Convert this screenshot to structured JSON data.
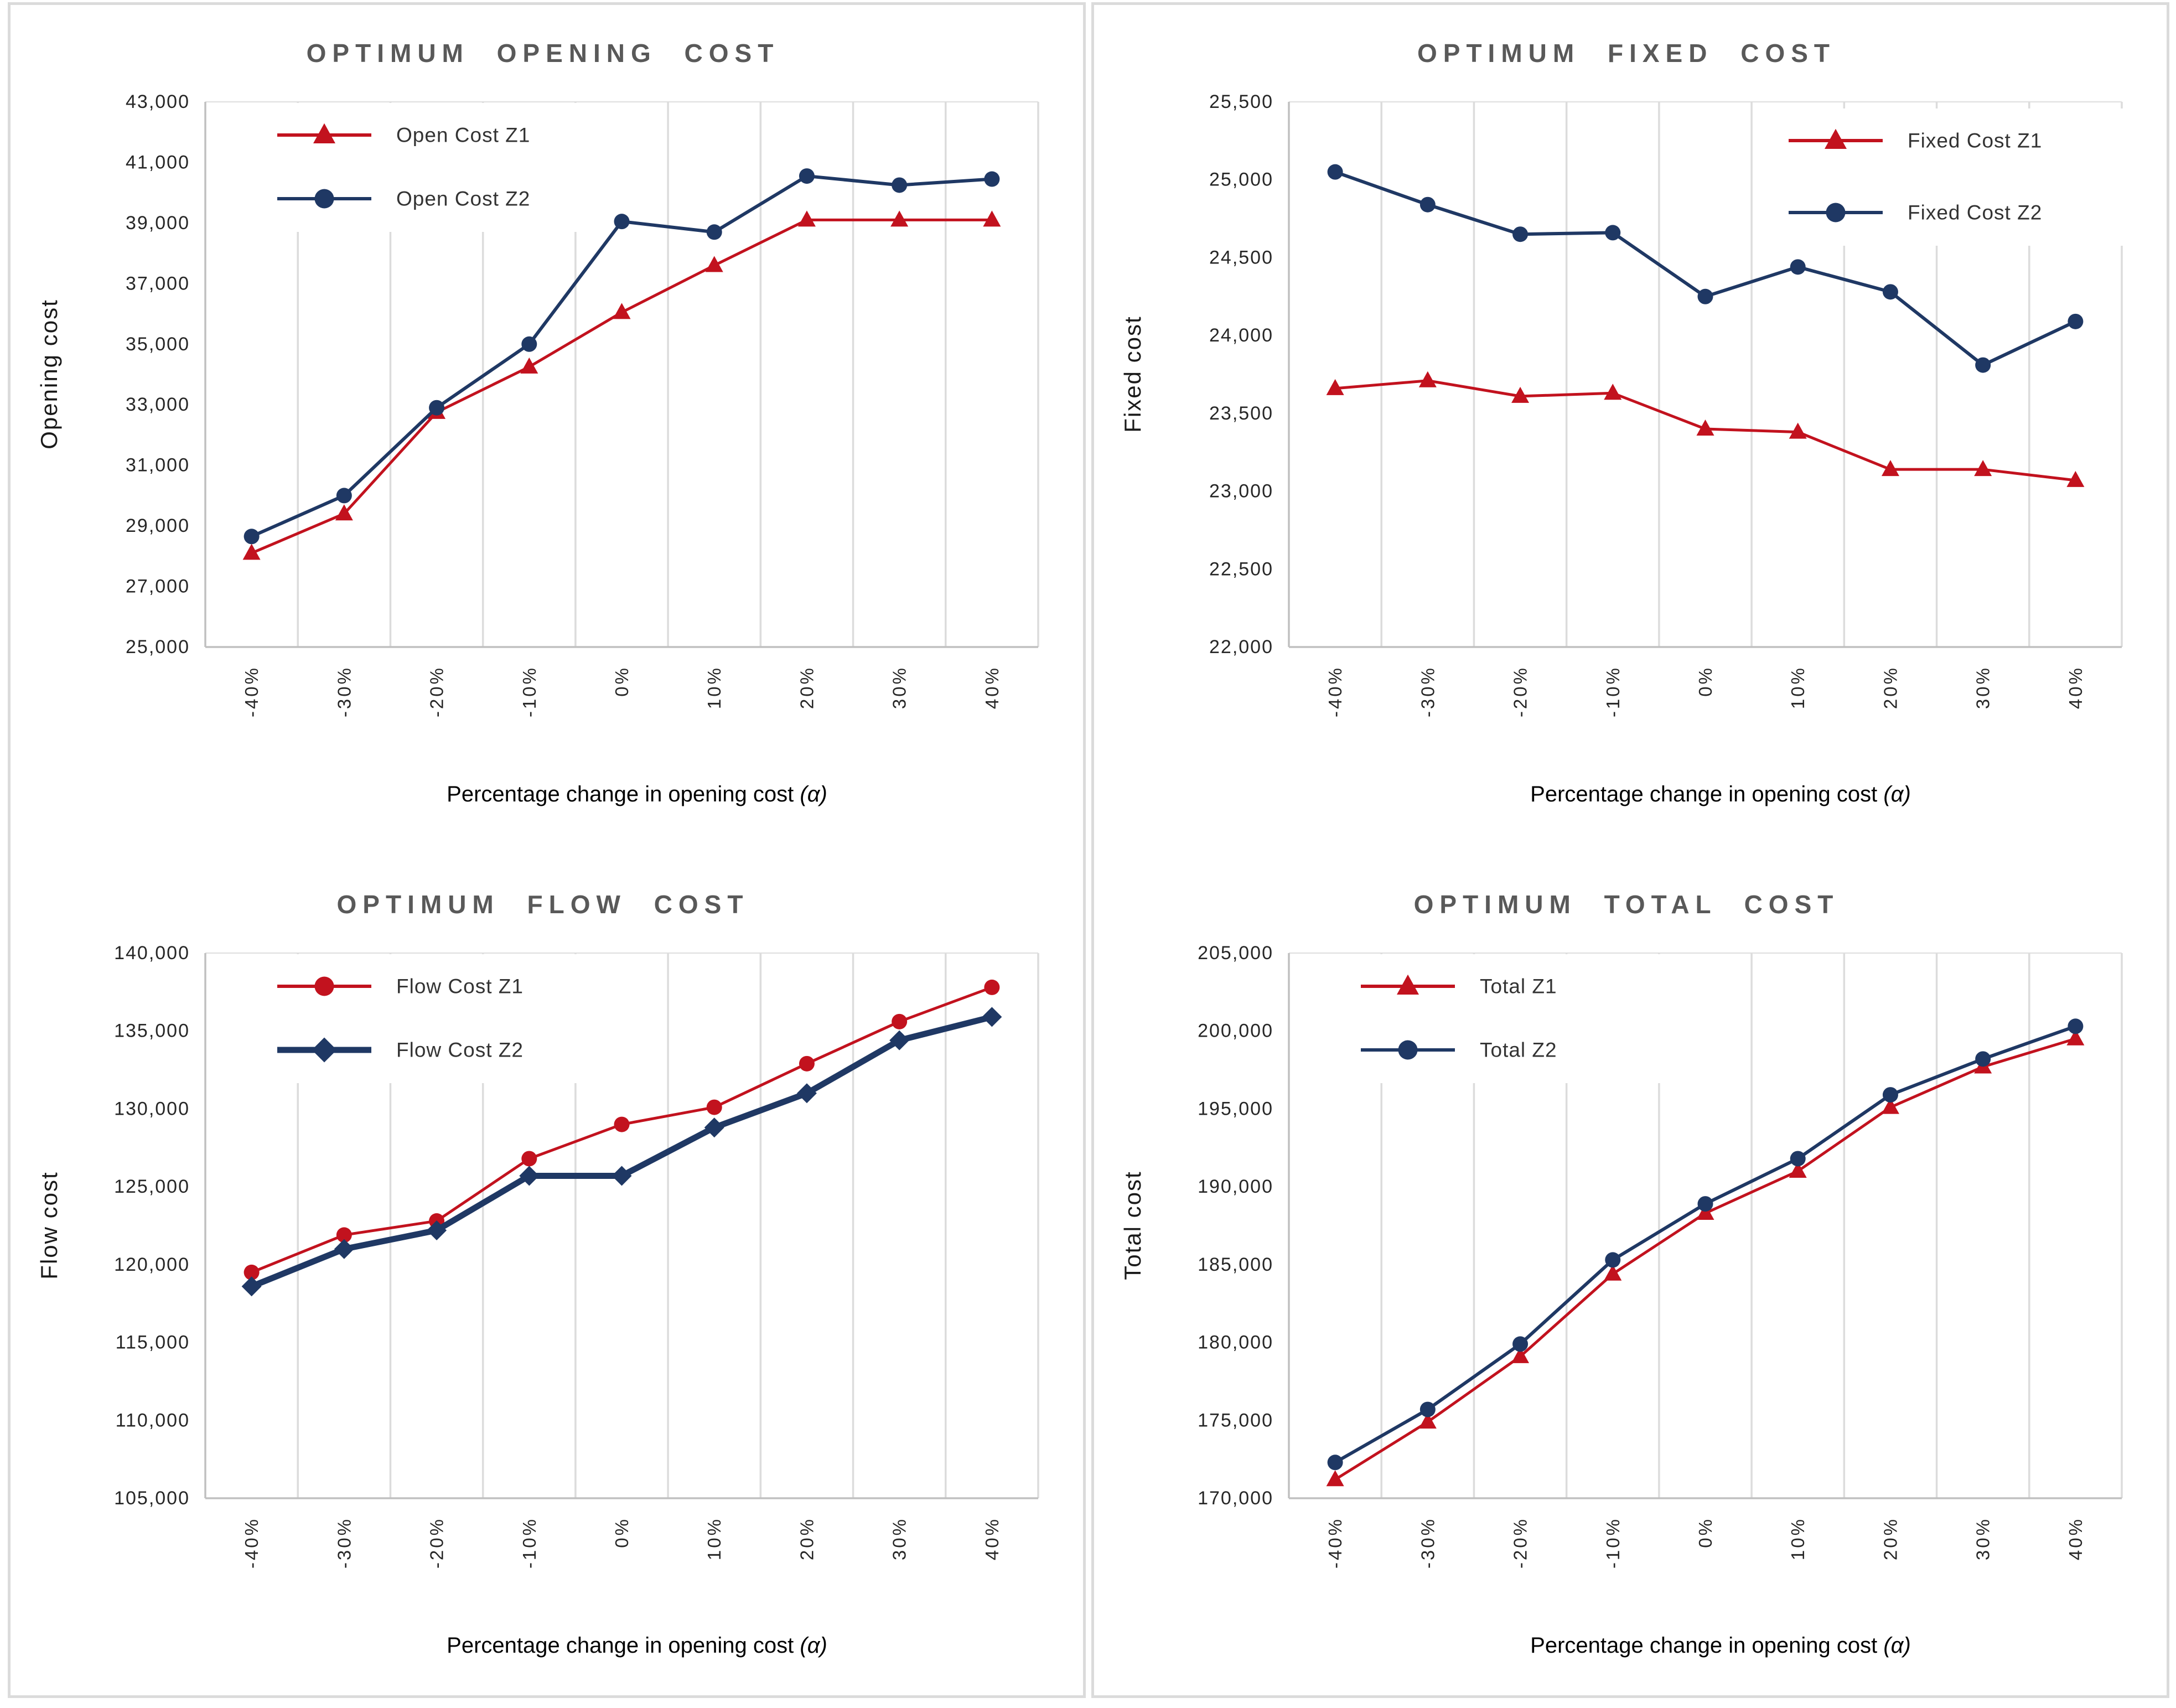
{
  "page": {
    "background": "#FFFFFF",
    "panel_border_color": "#DBDBDB"
  },
  "colors": {
    "z1": "#C2121E",
    "z2": "#1F3864",
    "grid": "#DCDCDC",
    "axis": "#C0C0C0",
    "plot_border": "#E2E2E2",
    "title": "#595959",
    "tick": "#262626",
    "legend_text": "#333333"
  },
  "chart_data": [
    {
      "type": "line",
      "title": "OPTIMUM OPENING COST",
      "ylabel": "Opening cost",
      "xlabel": "Percentage change in opening cost",
      "xlabel_suffix": "(α)",
      "categories": [
        "-40%",
        "-30%",
        "-20%",
        "-10%",
        "0%",
        "10%",
        "20%",
        "30%",
        "40%"
      ],
      "ylim": [
        25000,
        43000
      ],
      "ytick_step": 2000,
      "grid": "vertical",
      "legend_pos": "top-left",
      "series": [
        {
          "name": "Open Cost Z1",
          "color": "z1",
          "marker": "triangle",
          "line_width": 5,
          "values": [
            28100,
            29400,
            32750,
            34250,
            36050,
            37600,
            39100,
            39100,
            39100
          ]
        },
        {
          "name": "Open Cost Z2",
          "color": "z2",
          "marker": "circle",
          "line_width": 6,
          "values": [
            28650,
            30000,
            32900,
            35000,
            39050,
            38700,
            40550,
            40250,
            40450
          ]
        }
      ]
    },
    {
      "type": "line",
      "title": "OPTIMUM FIXED COST",
      "ylabel": "Fixed cost",
      "xlabel": "Percentage change in opening cost",
      "xlabel_suffix": "(α)",
      "categories": [
        "-40%",
        "-30%",
        "-20%",
        "-10%",
        "0%",
        "10%",
        "20%",
        "30%",
        "40%"
      ],
      "ylim": [
        22000,
        25500
      ],
      "ytick_step": 500,
      "grid": "vertical",
      "legend_pos": "top-right",
      "series": [
        {
          "name": "Fixed Cost Z1",
          "color": "z1",
          "marker": "triangle",
          "line_width": 5,
          "values": [
            23660,
            23710,
            23610,
            23630,
            23400,
            23380,
            23140,
            23140,
            23070
          ]
        },
        {
          "name": "Fixed Cost Z2",
          "color": "z2",
          "marker": "circle",
          "line_width": 6,
          "values": [
            25050,
            24840,
            24650,
            24660,
            24250,
            24440,
            24280,
            23810,
            24090
          ]
        }
      ]
    },
    {
      "type": "line",
      "title": "OPTIMUM FLOW COST",
      "ylabel": "Flow cost",
      "xlabel": "Percentage change in opening cost",
      "xlabel_suffix": "(α)",
      "categories": [
        "-40%",
        "-30%",
        "-20%",
        "-10%",
        "0%",
        "10%",
        "20%",
        "30%",
        "40%"
      ],
      "ylim": [
        105000,
        140000
      ],
      "ytick_step": 5000,
      "grid": "vertical",
      "legend_pos": "top-left",
      "series": [
        {
          "name": "Flow Cost Z1",
          "color": "z1",
          "marker": "circle",
          "line_width": 5,
          "values": [
            119500,
            121900,
            122800,
            126800,
            129000,
            130100,
            132900,
            135600,
            137800
          ]
        },
        {
          "name": "Flow Cost Z2",
          "color": "z2",
          "marker": "diamond",
          "line_width": 11,
          "values": [
            118600,
            121000,
            122200,
            125700,
            125700,
            128800,
            131000,
            134400,
            135900
          ]
        }
      ]
    },
    {
      "type": "line",
      "title": "OPTIMUM TOTAL COST",
      "ylabel": "Total cost",
      "xlabel": "Percentage change in opening cost",
      "xlabel_suffix": "(α)",
      "categories": [
        "-40%",
        "-30%",
        "-20%",
        "-10%",
        "0%",
        "10%",
        "20%",
        "30%",
        "40%"
      ],
      "ylim": [
        170000,
        205000
      ],
      "ytick_step": 5000,
      "grid": "vertical",
      "legend_pos": "top-left",
      "series": [
        {
          "name": "Total Z1",
          "color": "z1",
          "marker": "triangle",
          "line_width": 5,
          "values": [
            171200,
            174900,
            179100,
            184400,
            188300,
            191000,
            195100,
            197700,
            199500
          ]
        },
        {
          "name": "Total Z2",
          "color": "z2",
          "marker": "circle",
          "line_width": 6,
          "values": [
            172300,
            175700,
            179900,
            185300,
            188900,
            191800,
            195900,
            198200,
            200300
          ]
        }
      ]
    }
  ]
}
